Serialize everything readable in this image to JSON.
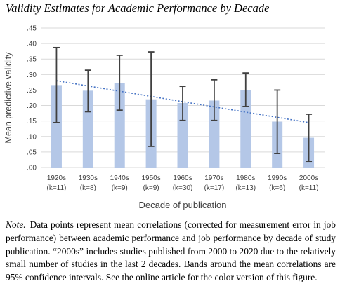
{
  "title": "Validity Estimates for Academic Performance by Decade",
  "note": {
    "label": "Note.",
    "text": "Data points represent mean correlations (corrected for measurement error in job performance) between academic performance and job performance by decade of study publication. “2000s” includes studies published from 2000 to 2020 due to the relatively small number of studies in the last 2 decades. Bands around the mean correlations are 95% confidence intervals. See the online article for the color version of this figure."
  },
  "chart_data": {
    "type": "bar",
    "title": "Validity Estimates for Academic Performance by Decade",
    "xlabel": "Decade of publication",
    "ylabel": "Mean predictive validity",
    "ylim": [
      0,
      0.45
    ],
    "yticks": [
      ".00",
      ".05",
      ".10",
      ".15",
      ".20",
      ".25",
      ".30",
      ".35",
      ".40",
      ".45"
    ],
    "grid": true,
    "categories": [
      "1920s",
      "1930s",
      "1940s",
      "1950s",
      "1960s",
      "1970s",
      "1980s",
      "1990s",
      "2000s"
    ],
    "category_counts": [
      "(k=11)",
      "(k=8)",
      "(k=9)",
      "(k=9)",
      "(k=30)",
      "(k=17)",
      "(k=13)",
      "(k=6)",
      "(k=11)"
    ],
    "values": [
      0.266,
      0.248,
      0.272,
      0.22,
      0.208,
      0.216,
      0.25,
      0.148,
      0.096
    ],
    "ci_lower": [
      0.145,
      0.18,
      0.185,
      0.068,
      0.152,
      0.152,
      0.197,
      0.045,
      0.02
    ],
    "ci_upper": [
      0.387,
      0.314,
      0.362,
      0.373,
      0.262,
      0.283,
      0.305,
      0.25,
      0.172
    ],
    "trendline": {
      "type": "linear",
      "start": 0.28,
      "end": 0.145
    },
    "colors": {
      "bar": "#b4c7e7",
      "trend": "#4472c4",
      "error": "#404040",
      "grid": "#d9d9d9"
    }
  }
}
